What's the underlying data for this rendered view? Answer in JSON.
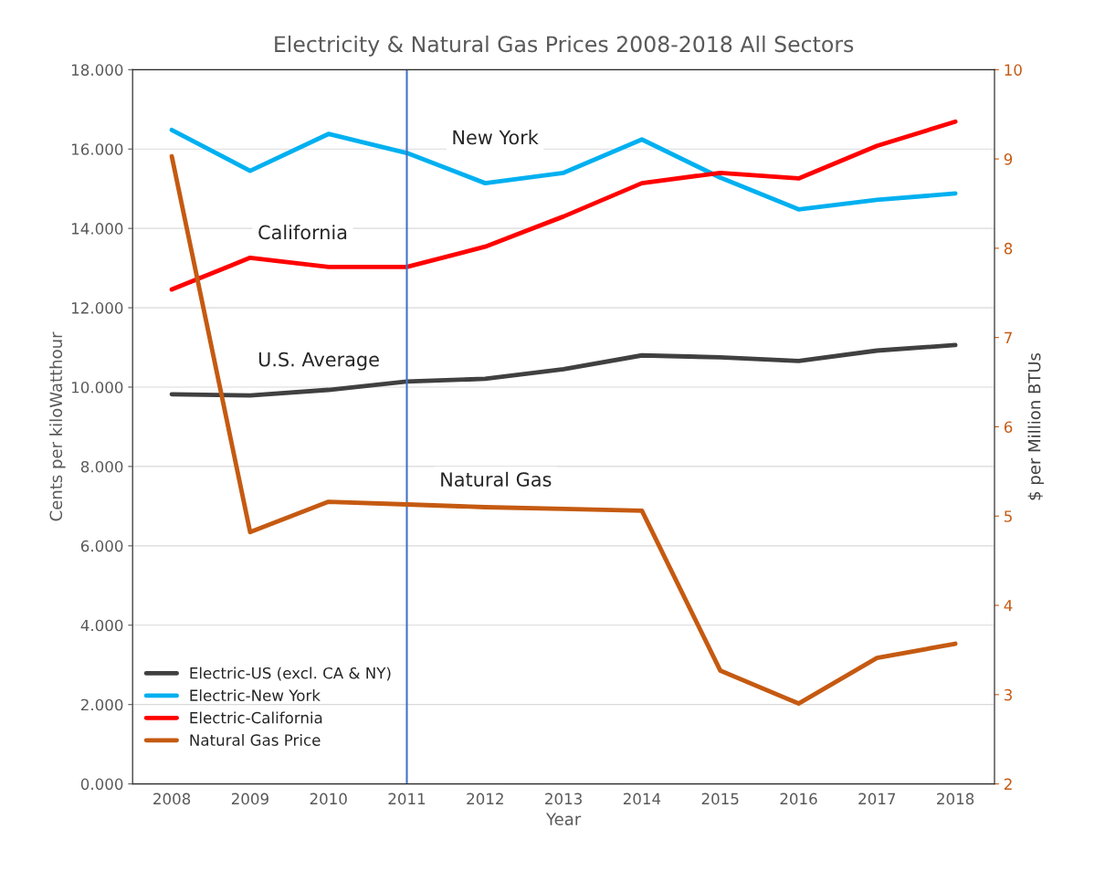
{
  "chart_data": {
    "type": "line",
    "title": "Electricity & Natural Gas Prices 2008-2018 All Sectors",
    "xlabel": "Year",
    "ylabel": "Cents per kiloWatthour",
    "y2label": "$ per Million BTUs",
    "categories": [
      "2008",
      "2009",
      "2010",
      "2011",
      "2012",
      "2013",
      "2014",
      "2015",
      "2016",
      "2017",
      "2018"
    ],
    "series": [
      {
        "name": "Electric-US (excl. CA & NY)",
        "color": "#404040",
        "values": [
          9.82,
          9.79,
          9.93,
          10.14,
          10.21,
          10.45,
          10.8,
          10.75,
          10.66,
          10.92,
          11.06
        ]
      },
      {
        "name": "Electric-New York",
        "color": "#00b0f0",
        "values": [
          16.48,
          15.45,
          16.38,
          15.9,
          15.14,
          15.4,
          16.24,
          15.28,
          14.48,
          14.72,
          14.88
        ]
      },
      {
        "name": "Electric-California",
        "color": "#ff0000",
        "values": [
          12.46,
          13.26,
          13.03,
          13.03,
          13.54,
          14.3,
          15.14,
          15.4,
          15.26,
          16.08,
          16.69
        ]
      },
      {
        "name": "Natural Gas Price",
        "color": "#c55a11",
        "axis": "y2",
        "values": [
          9.03,
          4.82,
          5.16,
          5.13,
          5.1,
          5.08,
          5.06,
          3.27,
          2.9,
          3.41,
          3.57
        ]
      }
    ],
    "ylim": [
      0,
      18
    ],
    "yticks": [
      {
        "value": 0,
        "label": "0.000"
      },
      {
        "value": 2,
        "label": "2.000"
      },
      {
        "value": 4,
        "label": "4.000"
      },
      {
        "value": 6,
        "label": "6.000"
      },
      {
        "value": 8,
        "label": "8.000"
      },
      {
        "value": 10,
        "label": "10.000"
      },
      {
        "value": 12,
        "label": "12.000"
      },
      {
        "value": 14,
        "label": "14.000"
      },
      {
        "value": 16,
        "label": "16.000"
      },
      {
        "value": 18,
        "label": "18.000"
      }
    ],
    "y2lim": [
      2,
      10
    ],
    "y2ticks": [
      2,
      3,
      4,
      5,
      6,
      7,
      8,
      9,
      10
    ],
    "ref_lines": [
      {
        "axis": "x",
        "value": "2011",
        "color": "#4472c4"
      }
    ],
    "annotations": [
      "New York",
      "California",
      "U.S. Average",
      "Natural Gas"
    ],
    "grid": "y",
    "legend": "bottom left",
    "marker": "none",
    "line_style": "solid"
  }
}
